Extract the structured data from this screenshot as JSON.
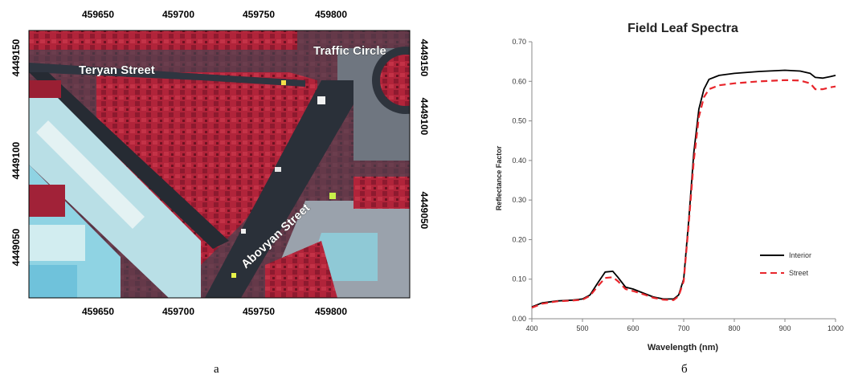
{
  "figure": {
    "caption_left": "a",
    "caption_right": "б"
  },
  "map": {
    "x_ticks": [
      "459650",
      "459700",
      "459750",
      "459800"
    ],
    "y_ticks": [
      "4449150",
      "4449100",
      "4449050"
    ],
    "labels": {
      "teryan": "Teryan Street",
      "traffic_circle": "Traffic Circle",
      "abovyan": "Abovyan Street"
    },
    "colors": {
      "vegetation": "#b1243a",
      "vegetation_dark": "#7d1628",
      "road": "#39424f",
      "roof_light": "#c9e6ea",
      "roof_cyan": "#8fd3e3",
      "ground": "#8c8f96"
    }
  },
  "chart_data": {
    "type": "line",
    "title": "Field Leaf Spectra",
    "xlabel": "Wavelength (nm)",
    "ylabel": "Reflectance Factor",
    "xlim": [
      400,
      1000
    ],
    "ylim": [
      0,
      0.7
    ],
    "x_ticks": [
      400,
      500,
      600,
      700,
      800,
      900,
      1000
    ],
    "y_ticks": [
      "0.00",
      "0.10",
      "0.20",
      "0.30",
      "0.40",
      "0.50",
      "0.60",
      "0.70"
    ],
    "legend_position": "lower-right",
    "grid": false,
    "series": [
      {
        "name": "Interior",
        "color": "#000000",
        "dash": "solid",
        "points": [
          [
            400,
            0.03
          ],
          [
            420,
            0.04
          ],
          [
            450,
            0.045
          ],
          [
            480,
            0.047
          ],
          [
            500,
            0.05
          ],
          [
            515,
            0.06
          ],
          [
            530,
            0.09
          ],
          [
            545,
            0.118
          ],
          [
            560,
            0.12
          ],
          [
            570,
            0.105
          ],
          [
            585,
            0.08
          ],
          [
            600,
            0.075
          ],
          [
            620,
            0.065
          ],
          [
            640,
            0.055
          ],
          [
            660,
            0.05
          ],
          [
            680,
            0.05
          ],
          [
            690,
            0.06
          ],
          [
            700,
            0.1
          ],
          [
            710,
            0.25
          ],
          [
            720,
            0.42
          ],
          [
            730,
            0.53
          ],
          [
            740,
            0.58
          ],
          [
            750,
            0.605
          ],
          [
            770,
            0.615
          ],
          [
            800,
            0.62
          ],
          [
            850,
            0.625
          ],
          [
            900,
            0.628
          ],
          [
            930,
            0.626
          ],
          [
            950,
            0.62
          ],
          [
            960,
            0.61
          ],
          [
            975,
            0.608
          ],
          [
            990,
            0.612
          ],
          [
            1000,
            0.615
          ]
        ]
      },
      {
        "name": "Street",
        "color": "#e8262c",
        "dash": "dashed",
        "points": [
          [
            400,
            0.028
          ],
          [
            420,
            0.038
          ],
          [
            450,
            0.044
          ],
          [
            480,
            0.046
          ],
          [
            500,
            0.048
          ],
          [
            515,
            0.058
          ],
          [
            530,
            0.082
          ],
          [
            545,
            0.103
          ],
          [
            560,
            0.105
          ],
          [
            570,
            0.095
          ],
          [
            585,
            0.075
          ],
          [
            600,
            0.07
          ],
          [
            620,
            0.062
          ],
          [
            640,
            0.053
          ],
          [
            660,
            0.048
          ],
          [
            680,
            0.047
          ],
          [
            690,
            0.057
          ],
          [
            700,
            0.095
          ],
          [
            710,
            0.24
          ],
          [
            720,
            0.4
          ],
          [
            730,
            0.51
          ],
          [
            740,
            0.56
          ],
          [
            750,
            0.58
          ],
          [
            770,
            0.59
          ],
          [
            800,
            0.595
          ],
          [
            850,
            0.6
          ],
          [
            900,
            0.603
          ],
          [
            930,
            0.602
          ],
          [
            950,
            0.595
          ],
          [
            960,
            0.58
          ],
          [
            975,
            0.58
          ],
          [
            990,
            0.585
          ],
          [
            1000,
            0.587
          ]
        ]
      }
    ]
  }
}
